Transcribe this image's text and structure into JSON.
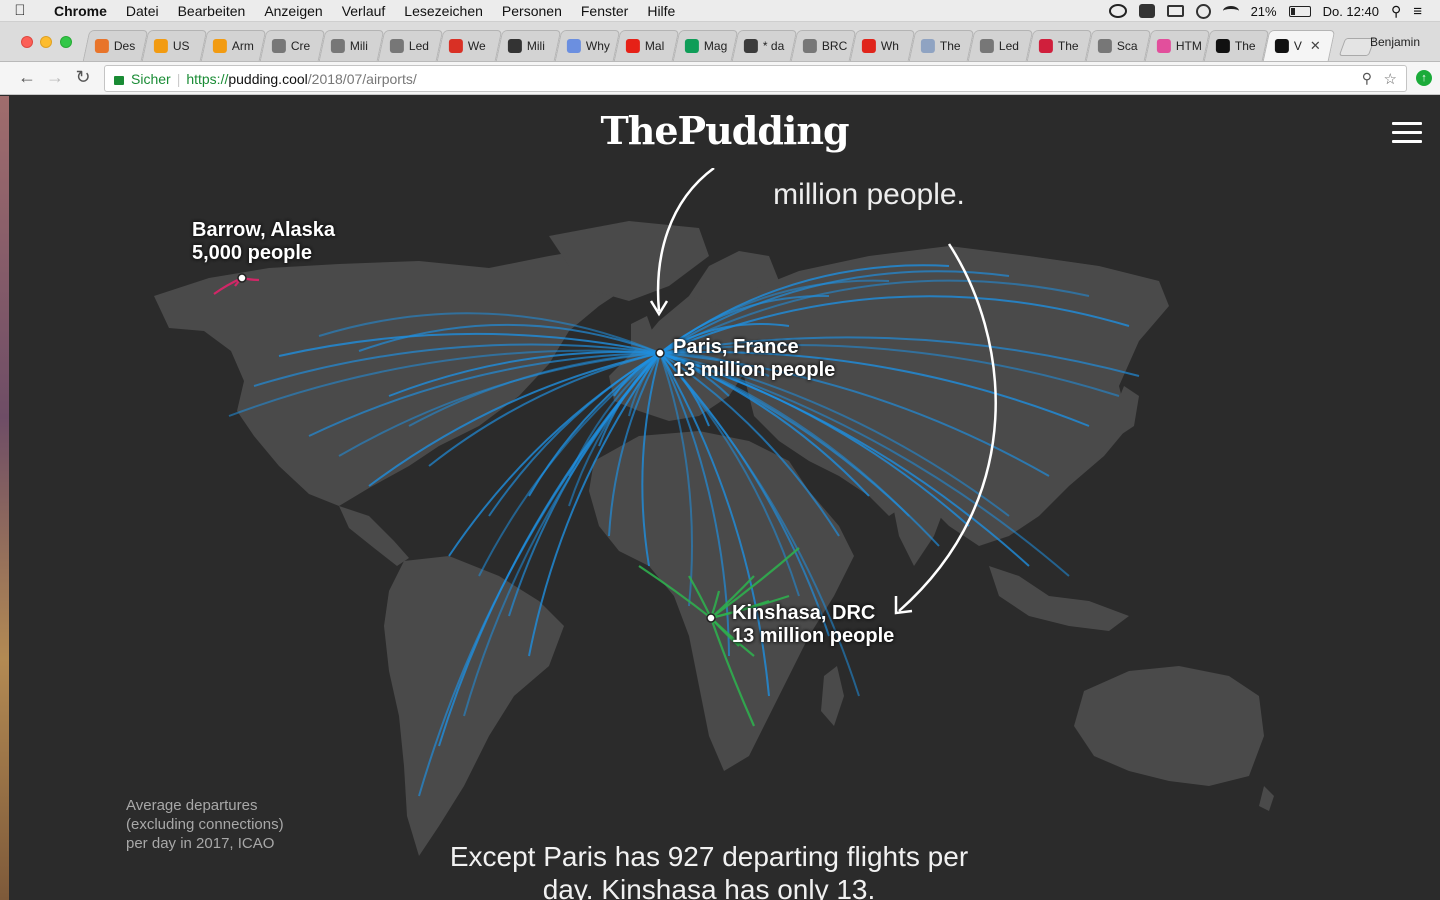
{
  "macos_menu": {
    "app": "Chrome",
    "items": [
      "Datei",
      "Bearbeiten",
      "Anzeigen",
      "Verlauf",
      "Lesezeichen",
      "Personen",
      "Fenster",
      "Hilfe"
    ],
    "battery": "21%",
    "clock": "Do. 12:40"
  },
  "browser": {
    "profile": "Benjamin",
    "tabs": [
      {
        "label": "Des",
        "favicon": "orange-ring-icon",
        "color": "#e8742a"
      },
      {
        "label": "US",
        "favicon": "amazon-icon",
        "color": "#f29b11"
      },
      {
        "label": "Arm",
        "favicon": "amazon-icon",
        "color": "#f29b11"
      },
      {
        "label": "Cre",
        "favicon": "page-icon",
        "color": "#777777"
      },
      {
        "label": "Mili",
        "favicon": "page-icon",
        "color": "#777777"
      },
      {
        "label": "Led",
        "favicon": "page-icon",
        "color": "#777777"
      },
      {
        "label": "We",
        "favicon": "red-ring-icon",
        "color": "#d93025"
      },
      {
        "label": "Mili",
        "favicon": "wikipedia-icon",
        "color": "#333333"
      },
      {
        "label": "Why",
        "favicon": "blue-circle-icon",
        "color": "#6b8fe0"
      },
      {
        "label": "Mal",
        "favicon": "youtube-icon",
        "color": "#e62117"
      },
      {
        "label": "Mag",
        "favicon": "sheets-icon",
        "color": "#0f9d58"
      },
      {
        "label": "* da",
        "favicon": "hash-icon",
        "color": "#3b3b3b"
      },
      {
        "label": "BRC",
        "favicon": "page-icon",
        "color": "#777777"
      },
      {
        "label": "Wh",
        "favicon": "red-square-icon",
        "color": "#e0241b"
      },
      {
        "label": "The",
        "favicon": "compass-icon",
        "color": "#8fa3c2"
      },
      {
        "label": "Led",
        "favicon": "page-icon",
        "color": "#777777"
      },
      {
        "label": "The",
        "favicon": "s-icon",
        "color": "#d01f3c"
      },
      {
        "label": "Sca",
        "favicon": "page-icon",
        "color": "#777777"
      },
      {
        "label": "HTM",
        "favicon": "color-wheel-icon",
        "color": "#e24f9c"
      },
      {
        "label": "The",
        "favicon": "nyt-icon",
        "color": "#111111"
      },
      {
        "label": "V",
        "favicon": "pudding-icon",
        "color": "#111111",
        "active": true
      }
    ],
    "address": {
      "secure_label": "Sicher",
      "protocol": "https://",
      "host": "pudding.cool",
      "path": "/2018/07/airports/"
    }
  },
  "site": {
    "logo": "ThePudding"
  },
  "story": {
    "upper_text": "million people.",
    "cities": [
      {
        "name": "Barrow, Alaska",
        "pop": "5,000 people"
      },
      {
        "name": "Paris, France",
        "pop": "13 million people"
      },
      {
        "name": "Kinshasa, DRC",
        "pop": "13 million people"
      }
    ],
    "note": "Average departures (excluding connections) per day in 2017, ICAO",
    "bottom_text": "Except Paris has 927 departing flights per day. Kinshasa has only 13."
  },
  "colors": {
    "paris_routes": "#1f8fe0",
    "kinshasa_routes": "#2fae4e",
    "barrow_routes": "#e0246a",
    "land": "#4a4a4a",
    "background": "#2b2b2b"
  }
}
